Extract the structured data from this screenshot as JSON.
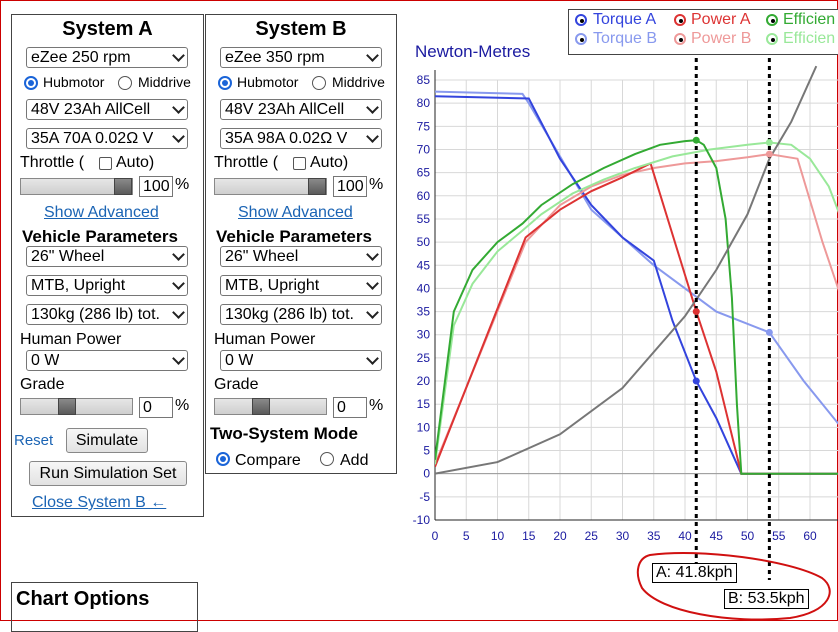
{
  "systemA": {
    "title": "System A",
    "motor": "eZee 250 rpm",
    "hubmotor_label": "Hubmotor",
    "middrive_label": "Middrive",
    "battery": "48V 23Ah AllCell",
    "controller": "35A 70A 0.02Ω V",
    "throttle_label": "Throttle (",
    "auto_label": "Auto)",
    "throttle_value": "100",
    "throttle_fraction": 1.0,
    "percent": "%",
    "show_advanced": "Show Advanced",
    "vehicle_params": "Vehicle Parameters",
    "wheel": "26\"  Wheel",
    "bike": "MTB, Upright",
    "mass": "130kg (286 lb) tot.",
    "human_power_label": "Human Power",
    "human_power": "0 W",
    "grade_label": "Grade",
    "grade_value": "0",
    "grade_fraction": 0.4,
    "reset": "Reset",
    "simulate": "Simulate",
    "run_set": "Run Simulation Set",
    "close_b": "Close System B ←"
  },
  "systemB": {
    "title": "System B",
    "motor": "eZee 350 rpm",
    "hubmotor_label": "Hubmotor",
    "middrive_label": "Middrive",
    "battery": "48V 23Ah AllCell",
    "controller": "35A 98A 0.02Ω V",
    "throttle_label": "Throttle (",
    "auto_label": "Auto)",
    "throttle_value": "100",
    "throttle_fraction": 1.0,
    "percent": "%",
    "show_advanced": "Show Advanced",
    "vehicle_params": "Vehicle Parameters",
    "wheel": "26\"  Wheel",
    "bike": "MTB, Upright",
    "mass": "130kg (286 lb) tot.",
    "human_power_label": "Human Power",
    "human_power": "0 W",
    "grade_label": "Grade",
    "grade_value": "0",
    "grade_fraction": 0.4,
    "two_system_mode": "Two-System Mode",
    "compare": "Compare",
    "add": "Add"
  },
  "chart_options": {
    "title": "Chart Options"
  },
  "legend": {
    "torque_a": "Torque A",
    "power_a": "Power A",
    "eff_a": "Efficien",
    "torque_b": "Torque B",
    "power_b": "Power B",
    "eff_b": "Efficien"
  },
  "colors": {
    "torqueA": "#3344dd",
    "torqueB": "#8899ee",
    "powerA": "#dd3333",
    "powerB": "#ee9999",
    "effA": "#33aa33",
    "effB": "#99e899",
    "load": "#777777",
    "axis": "#1a1aa0"
  },
  "markers": {
    "a_label": "A: 41.8kph",
    "b_label": "B: 53.5kph"
  },
  "chart_data": {
    "type": "line",
    "ylabel": "Newton-Metres",
    "xlim": [
      0,
      65
    ],
    "ylim": [
      -10,
      85
    ],
    "xticks": [
      0,
      5,
      10,
      15,
      20,
      25,
      30,
      35,
      40,
      45,
      50,
      55,
      60
    ],
    "yticks": [
      -10,
      -5,
      0,
      5,
      10,
      15,
      20,
      25,
      30,
      35,
      40,
      45,
      50,
      55,
      60,
      65,
      70,
      75,
      80,
      85
    ],
    "markerA_x": 41.8,
    "markerB_x": 53.5,
    "series": [
      {
        "key": "torqueB",
        "x": [
          0,
          14,
          15,
          25,
          35,
          45,
          53.5,
          59,
          65
        ],
        "y": [
          82.5,
          82,
          80,
          57,
          45,
          35,
          30.5,
          20,
          10
        ]
      },
      {
        "key": "torqueA",
        "x": [
          0,
          15,
          20,
          25,
          30,
          35,
          38,
          41.8,
          45,
          48,
          49,
          65
        ],
        "y": [
          81.5,
          81,
          68,
          58,
          51,
          46,
          33,
          20,
          12,
          3,
          0,
          0
        ]
      },
      {
        "key": "powerB",
        "x": [
          0,
          14.5,
          20,
          25,
          30,
          35,
          40,
          45,
          50,
          53.5,
          58,
          62,
          65
        ],
        "y": [
          2,
          50,
          58,
          62,
          64.5,
          66,
          67,
          67.5,
          68.3,
          69,
          68,
          50,
          38
        ]
      },
      {
        "key": "powerA",
        "x": [
          0,
          14.5,
          20,
          25,
          30,
          34.5,
          41.8,
          45,
          49,
          65
        ],
        "y": [
          1.5,
          51,
          57,
          61,
          64,
          67,
          35,
          22,
          0,
          0
        ]
      },
      {
        "key": "effB",
        "x": [
          0,
          3,
          6,
          10,
          14,
          17,
          22,
          27,
          32,
          38,
          44,
          50,
          53.5,
          57,
          60,
          63,
          65
        ],
        "y": [
          2,
          32,
          41,
          48,
          52.5,
          56,
          60.5,
          63.5,
          66,
          68.5,
          70,
          71,
          71.5,
          71,
          68,
          62,
          55
        ]
      },
      {
        "key": "effA",
        "x": [
          0,
          3,
          6,
          10,
          14,
          17,
          22,
          27,
          32,
          36,
          40,
          41.8,
          43,
          45,
          46.5,
          47.5,
          48.3,
          49,
          65
        ],
        "y": [
          3,
          35,
          44,
          50,
          54,
          58,
          62.5,
          66,
          69,
          71,
          71.8,
          72,
          71,
          66,
          55,
          38,
          15,
          0,
          0
        ]
      },
      {
        "key": "load",
        "x": [
          0,
          10,
          20,
          30,
          40,
          45,
          50,
          53.5,
          57,
          61
        ],
        "y": [
          0,
          2.5,
          8.5,
          18.5,
          34,
          44,
          56,
          68,
          76,
          88
        ]
      }
    ],
    "points": [
      {
        "key": "effA",
        "x": 41.8,
        "y": 72
      },
      {
        "key": "powerA",
        "x": 41.8,
        "y": 35
      },
      {
        "key": "torqueA",
        "x": 41.8,
        "y": 20
      },
      {
        "key": "effB",
        "x": 53.5,
        "y": 71.5
      },
      {
        "key": "powerB",
        "x": 53.5,
        "y": 69
      },
      {
        "key": "torqueB",
        "x": 53.5,
        "y": 30.5
      }
    ]
  }
}
